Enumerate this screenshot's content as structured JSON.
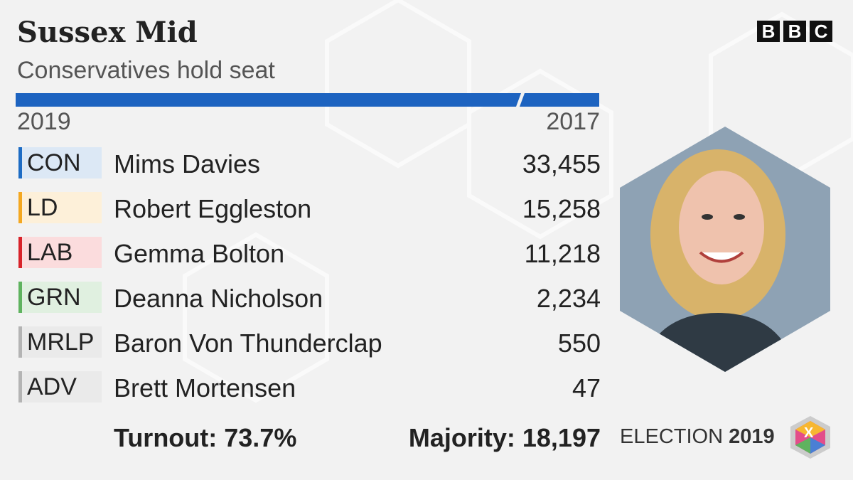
{
  "header": {
    "title": "Sussex Mid",
    "subtitle": "Conservatives hold seat",
    "logo": [
      "B",
      "B",
      "C"
    ]
  },
  "table": {
    "year_current": "2019",
    "year_previous": "2017",
    "rows": [
      {
        "party": "CON",
        "candidate": "Mims Davies",
        "votes": "33,455",
        "color": "#1d6cc4",
        "tint": "#dce8f5"
      },
      {
        "party": "LD",
        "candidate": "Robert Eggleston",
        "votes": "15,258",
        "color": "#f4a821",
        "tint": "#fdf0d9"
      },
      {
        "party": "LAB",
        "candidate": "Gemma Bolton",
        "votes": "11,218",
        "color": "#d8232a",
        "tint": "#fbdcdd"
      },
      {
        "party": "GRN",
        "candidate": "Deanna Nicholson",
        "votes": "2,234",
        "color": "#5fb35f",
        "tint": "#e0f0e0"
      },
      {
        "party": "MRLP",
        "candidate": "Baron Von Thunderclap",
        "votes": "550",
        "color": "#b4b4b4",
        "tint": "#eaeaea"
      },
      {
        "party": "ADV",
        "candidate": "Brett Mortensen",
        "votes": "47",
        "color": "#b4b4b4",
        "tint": "#eaeaea"
      }
    ]
  },
  "footer": {
    "turnout": "Turnout: 73.7%",
    "majority": "Majority: 18,197",
    "election": "ELECTION",
    "year": "2019",
    "badge": "X"
  }
}
